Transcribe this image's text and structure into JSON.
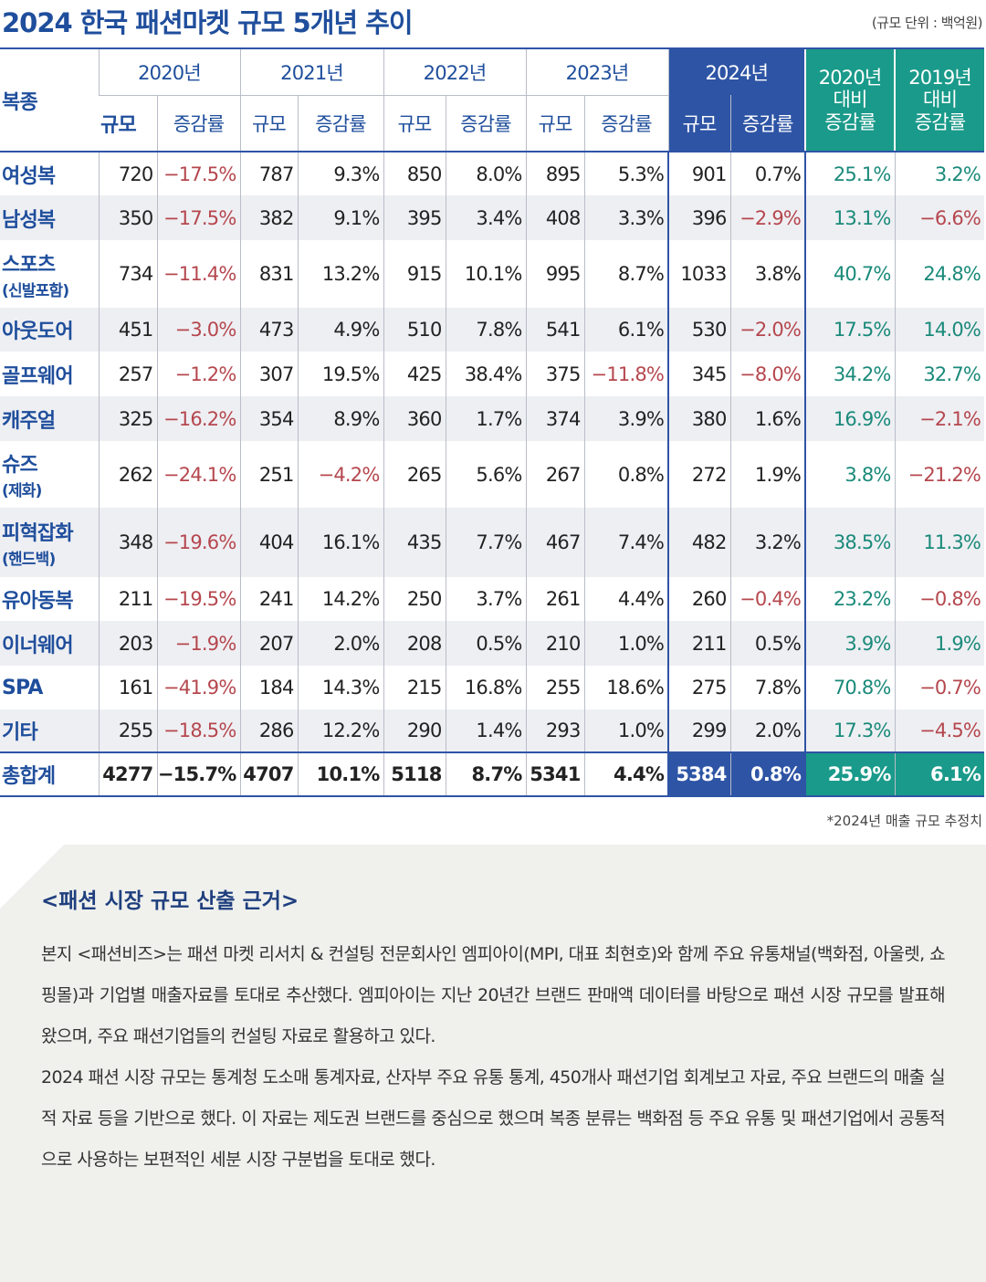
{
  "header": {
    "title": "2024 한국 패션마켓 규모 5개년 추이",
    "unit": "(규모 단위 : 백억원)"
  },
  "table": {
    "corner": "복종",
    "years": [
      "2020년",
      "2021년",
      "2022년",
      "2023년",
      "2024년"
    ],
    "sub": [
      "규모",
      "증감률"
    ],
    "compare": [
      [
        "2020년",
        "대비",
        "증감률"
      ],
      [
        "2019년",
        "대비",
        "증감률"
      ]
    ],
    "rows": [
      {
        "name": [
          "여성복"
        ],
        "values": [
          "720",
          "−17.5%",
          "787",
          "9.3%",
          "850",
          "8.0%",
          "895",
          "5.3%",
          "901",
          "0.7%",
          "25.1%",
          "3.2%"
        ]
      },
      {
        "name": [
          "남성복"
        ],
        "values": [
          "350",
          "−17.5%",
          "382",
          "9.1%",
          "395",
          "3.4%",
          "408",
          "3.3%",
          "396",
          "−2.9%",
          "13.1%",
          "−6.6%"
        ]
      },
      {
        "name": [
          "스포츠",
          "(신발포함)"
        ],
        "values": [
          "734",
          "−11.4%",
          "831",
          "13.2%",
          "915",
          "10.1%",
          "995",
          "8.7%",
          "1033",
          "3.8%",
          "40.7%",
          "24.8%"
        ]
      },
      {
        "name": [
          "아웃도어"
        ],
        "values": [
          "451",
          "−3.0%",
          "473",
          "4.9%",
          "510",
          "7.8%",
          "541",
          "6.1%",
          "530",
          "−2.0%",
          "17.5%",
          "14.0%"
        ]
      },
      {
        "name": [
          "골프웨어"
        ],
        "values": [
          "257",
          "−1.2%",
          "307",
          "19.5%",
          "425",
          "38.4%",
          "375",
          "−11.8%",
          "345",
          "−8.0%",
          "34.2%",
          "32.7%"
        ]
      },
      {
        "name": [
          "캐주얼"
        ],
        "values": [
          "325",
          "−16.2%",
          "354",
          "8.9%",
          "360",
          "1.7%",
          "374",
          "3.9%",
          "380",
          "1.6%",
          "16.9%",
          "−2.1%"
        ]
      },
      {
        "name": [
          "슈즈",
          "(제화)"
        ],
        "values": [
          "262",
          "−24.1%",
          "251",
          "−4.2%",
          "265",
          "5.6%",
          "267",
          "0.8%",
          "272",
          "1.9%",
          "3.8%",
          "−21.2%"
        ]
      },
      {
        "name": [
          "피혁잡화",
          "(핸드백)"
        ],
        "values": [
          "348",
          "−19.6%",
          "404",
          "16.1%",
          "435",
          "7.7%",
          "467",
          "7.4%",
          "482",
          "3.2%",
          "38.5%",
          "11.3%"
        ]
      },
      {
        "name": [
          "유아동복"
        ],
        "values": [
          "211",
          "−19.5%",
          "241",
          "14.2%",
          "250",
          "3.7%",
          "261",
          "4.4%",
          "260",
          "−0.4%",
          "23.2%",
          "−0.8%"
        ]
      },
      {
        "name": [
          "이너웨어"
        ],
        "values": [
          "203",
          "−1.9%",
          "207",
          "2.0%",
          "208",
          "0.5%",
          "210",
          "1.0%",
          "211",
          "0.5%",
          "3.9%",
          "1.9%"
        ]
      },
      {
        "name": [
          "SPA"
        ],
        "values": [
          "161",
          "−41.9%",
          "184",
          "14.3%",
          "215",
          "16.8%",
          "255",
          "18.6%",
          "275",
          "7.8%",
          "70.8%",
          "−0.7%"
        ]
      },
      {
        "name": [
          "기타"
        ],
        "values": [
          "255",
          "−18.5%",
          "286",
          "12.2%",
          "290",
          "1.4%",
          "293",
          "1.0%",
          "299",
          "2.0%",
          "17.3%",
          "−4.5%"
        ]
      }
    ],
    "total": {
      "name": [
        "총합계"
      ],
      "values": [
        "4277",
        "−15.7%",
        "4707",
        "10.1%",
        "5118",
        "8.7%",
        "5341",
        "4.4%",
        "5384",
        "0.8%",
        "25.9%",
        "6.1%"
      ]
    }
  },
  "footnote": "*2024년 매출 규모 추정치",
  "basis": {
    "title": "<패션 시장 규모 산출 근거>",
    "paragraphs": [
      "본지 <패션비즈>는 패션 마켓 리서치 & 컨설팅 전문회사인 엠피아이(MPI, 대표 최현호)와 함께 주요 유통채널(백화점, 아울렛, 쇼핑몰)과 기업별 매출자료를 토대로 추산했다. 엠피아이는 지난 20년간 브랜드 판매액 데이터를 바탕으로 패션 시장 규모를 발표해 왔으며, 주요 패션기업들의 컨설팅 자료로 활용하고 있다.",
      "2024 패션 시장 규모는 통계청 도소매 통계자료, 산자부 주요 유통 통계, 450개사 패션기업 회계보고 자료, 주요 브랜드의 매출 실적 자료 등을 기반으로 했다. 이 자료는 제도권 브랜드를 중심으로 했으며 복종 분류는 백화점 등 주요 유통 및 패션기업에서 공통적으로 사용하는 보편적인 세분 시장 구분법을 토대로 했다."
    ]
  }
}
